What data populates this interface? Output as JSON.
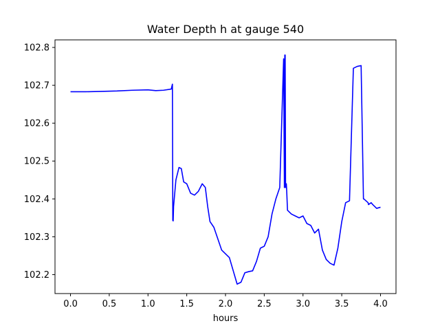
{
  "chart_data": {
    "type": "line",
    "title": "Water Depth h at gauge 540",
    "xlabel": "hours",
    "ylabel": "",
    "xlim": [
      -0.2,
      4.2
    ],
    "ylim": [
      102.15,
      102.82
    ],
    "grid": false,
    "legend": "none",
    "x_ticks": [
      0.0,
      0.5,
      1.0,
      1.5,
      2.0,
      2.5,
      3.0,
      3.5,
      4.0
    ],
    "x_tick_labels": [
      "0.0",
      "0.5",
      "1.0",
      "1.5",
      "2.0",
      "2.5",
      "3.0",
      "3.5",
      "4.0"
    ],
    "y_ticks": [
      102.2,
      102.3,
      102.4,
      102.5,
      102.6,
      102.7,
      102.8
    ],
    "y_tick_labels": [
      "102.2",
      "102.3",
      "102.4",
      "102.5",
      "102.6",
      "102.7",
      "102.8"
    ],
    "series": [
      {
        "color": "#0000ff",
        "x": [
          0.0,
          0.2,
          0.4,
          0.6,
          0.8,
          1.0,
          1.1,
          1.2,
          1.3,
          1.315,
          1.32,
          1.325,
          1.33,
          1.36,
          1.4,
          1.43,
          1.46,
          1.5,
          1.55,
          1.6,
          1.65,
          1.7,
          1.74,
          1.77,
          1.8,
          1.85,
          1.9,
          1.95,
          2.0,
          2.05,
          2.1,
          2.15,
          2.2,
          2.25,
          2.3,
          2.35,
          2.4,
          2.45,
          2.5,
          2.55,
          2.6,
          2.65,
          2.7,
          2.75,
          2.76,
          2.765,
          2.77,
          2.775,
          2.78,
          2.785,
          2.79,
          2.8,
          2.85,
          2.9,
          2.95,
          3.0,
          3.05,
          3.1,
          3.15,
          3.2,
          3.25,
          3.3,
          3.35,
          3.4,
          3.45,
          3.5,
          3.55,
          3.6,
          3.65,
          3.7,
          3.75,
          3.78,
          3.785,
          3.84,
          3.845,
          3.88,
          3.9,
          3.95,
          4.0
        ],
        "y": [
          102.683,
          102.683,
          102.684,
          102.685,
          102.687,
          102.688,
          102.686,
          102.687,
          102.69,
          102.703,
          102.343,
          102.342,
          102.38,
          102.45,
          102.483,
          102.48,
          102.445,
          102.44,
          102.415,
          102.41,
          102.42,
          102.44,
          102.43,
          102.38,
          102.34,
          102.325,
          102.295,
          102.265,
          102.255,
          102.245,
          102.21,
          102.175,
          102.18,
          102.205,
          102.208,
          102.21,
          102.235,
          102.27,
          102.275,
          102.3,
          102.36,
          102.4,
          102.43,
          102.77,
          102.43,
          102.78,
          102.78,
          102.43,
          102.44,
          102.44,
          102.42,
          102.37,
          102.36,
          102.355,
          102.35,
          102.355,
          102.335,
          102.33,
          102.31,
          102.32,
          102.265,
          102.24,
          102.23,
          102.225,
          102.27,
          102.34,
          102.39,
          102.395,
          102.745,
          102.75,
          102.752,
          102.4,
          102.4,
          102.39,
          102.385,
          102.39,
          102.385,
          102.375,
          102.378
        ]
      }
    ]
  }
}
